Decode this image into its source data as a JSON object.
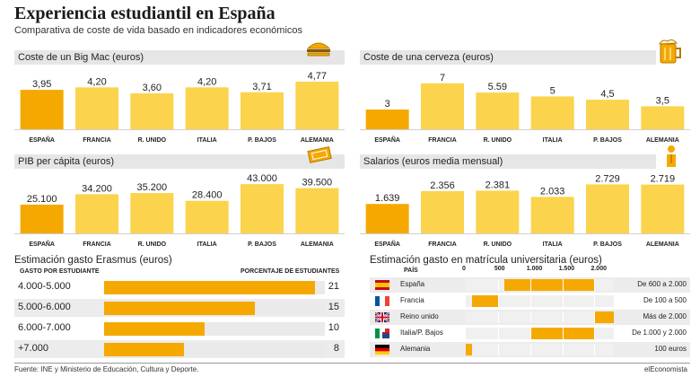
{
  "title": "Experiencia estudiantil en España",
  "subtitle": "Comparativa de coste de vida basado en indicadores económicos",
  "colors": {
    "highlight": "#f5a900",
    "bar": "#fcd34d",
    "header_bg": "#e6e6e6",
    "track": "#eaeaea"
  },
  "chart_data": [
    {
      "id": "bigmac",
      "type": "bar",
      "title": "Coste de un Big Mac (euros)",
      "categories": [
        "ESPAÑA",
        "FRANCIA",
        "R. UNIDO",
        "ITALIA",
        "P. BAJOS",
        "ALEMANIA"
      ],
      "values": [
        3.95,
        4.2,
        3.6,
        4.2,
        3.71,
        4.77
      ],
      "labels": [
        "3,95",
        "4,20",
        "3,60",
        "4,20",
        "3,71",
        "4,77"
      ],
      "ylim": [
        0,
        5.4
      ],
      "highlight_index": 0
    },
    {
      "id": "cerveza",
      "type": "bar",
      "title": "Coste de una cerveza (euros)",
      "categories": [
        "ESPAÑA",
        "FRANCIA",
        "R. UNIDO",
        "ITALIA",
        "P. BAJOS",
        "ALEMANIA"
      ],
      "values": [
        3,
        7,
        5.59,
        5,
        4.5,
        3.5
      ],
      "labels": [
        "3",
        "7",
        "5.59",
        "5",
        "4,5",
        "3,5"
      ],
      "ylim": [
        0,
        8.2
      ],
      "highlight_index": 0
    },
    {
      "id": "pib",
      "type": "bar",
      "title": "PIB per cápita (euros)",
      "categories": [
        "ESPAÑA",
        "FRANCIA",
        "R. UNIDO",
        "ITALIA",
        "P. BAJOS",
        "ALEMANIA"
      ],
      "values": [
        25100,
        34200,
        35200,
        28400,
        43000,
        39500
      ],
      "labels": [
        "25.100",
        "34.200",
        "35.200",
        "28.400",
        "43.000",
        "39.500"
      ],
      "ylim": [
        0,
        47000
      ],
      "highlight_index": 0
    },
    {
      "id": "salarios",
      "type": "bar",
      "title": "Salarios (euros media mensual)",
      "categories": [
        "ESPAÑA",
        "FRANCIA",
        "R. UNIDO",
        "ITALIA",
        "P. BAJOS",
        "ALEMANIA"
      ],
      "values": [
        1639,
        2356,
        2381,
        2033,
        2729,
        2719
      ],
      "labels": [
        "1.639",
        "2.356",
        "2.381",
        "2.033",
        "2.729",
        "2.719"
      ],
      "ylim": [
        0,
        3000
      ],
      "highlight_index": 0
    },
    {
      "id": "erasmus",
      "type": "bar",
      "orientation": "horizontal",
      "title": "Estimación gasto Erasmus (euros)",
      "col_left": "GASTO POR ESTUDIANTE",
      "col_right": "PORCENTAJE DE ESTUDIANTES",
      "categories": [
        "4.000-5.000",
        "5.000-6.000",
        "6.000-7.000",
        "+7.000"
      ],
      "values": [
        21,
        15,
        10,
        8
      ],
      "xlim": [
        0,
        22
      ]
    },
    {
      "id": "matricula",
      "type": "bar",
      "orientation": "horizontal",
      "title": "Estimación gasto en matrícula universitaria (euros)",
      "country_header": "PAÍS",
      "ticks": [
        0,
        500,
        1000,
        1500,
        2000
      ],
      "tick_labels": [
        "0",
        "500",
        "1.000",
        "1.500",
        "2.000"
      ],
      "xlim": [
        0,
        2300
      ],
      "rows": [
        {
          "country": "España",
          "flag": "es",
          "min": 600,
          "max": 2000,
          "range": "De 600 a 2.000"
        },
        {
          "country": "Francia",
          "flag": "fr",
          "min": 100,
          "max": 500,
          "range": "De 100 a 500"
        },
        {
          "country": "Reino unido",
          "flag": "uk",
          "min": 2000,
          "max": 2300,
          "range": "Más de 2.000"
        },
        {
          "country": "Italia/P. Bajos",
          "flag": "it",
          "min": 1000,
          "max": 2000,
          "range": "De 1.000 y 2.000"
        },
        {
          "country": "Alemania",
          "flag": "de",
          "min": 0,
          "max": 100,
          "range": "100 euros"
        }
      ]
    }
  ],
  "footer": {
    "source": "Fuente: INE y Ministerio de Educación, Cultura y Deporte.",
    "brand": "elEconomista"
  }
}
